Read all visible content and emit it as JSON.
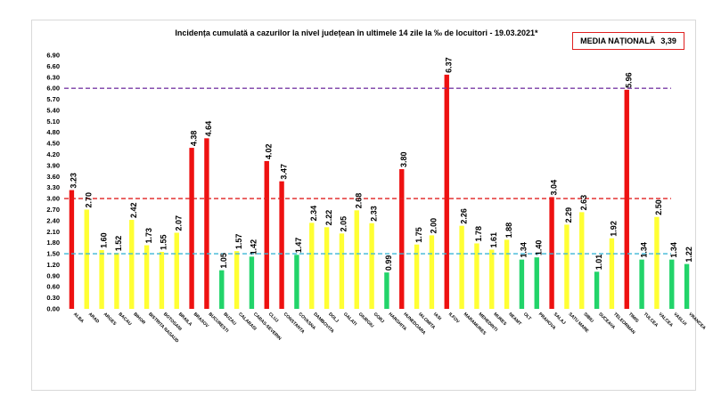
{
  "chart_data": {
    "type": "bar",
    "title": "Incidența cumulată a cazurilor la nivel județean în ultimele 14 zile la ‰ de locuitori - 19.03.2021*",
    "national_box": {
      "label": "MEDIA NAȚIONALĂ",
      "value": "3,39"
    },
    "categories": [
      "ALBA",
      "ARAD",
      "ARGES",
      "BACAU",
      "BIHOR",
      "BISTRITA NASAUD",
      "BOTOSANI",
      "BRAILA",
      "BRASOV",
      "BUCURESTI",
      "BUZAU",
      "CALARASI",
      "CARAS-SEVERIN",
      "CLUJ",
      "CONSTANTA",
      "COVASNA",
      "DAMBOVITA",
      "DOLJ",
      "GALATI",
      "GIURGIU",
      "GORJ",
      "HARGHITA",
      "HUNEDOARA",
      "IALOMITA",
      "IASI",
      "ILFOV",
      "MARAMURES",
      "MEHEDINTI",
      "MURES",
      "NEAMT",
      "OLT",
      "PRAHOVA",
      "SALAJ",
      "SATU MARE",
      "SIBIU",
      "SUCEAVA",
      "TELEORMAN",
      "TIMIS",
      "TULCEA",
      "VALCEA",
      "VASLUI",
      "VRANCEA"
    ],
    "values": [
      3.23,
      2.7,
      1.6,
      1.52,
      2.42,
      1.73,
      1.55,
      2.07,
      4.38,
      4.64,
      1.05,
      1.57,
      1.42,
      4.02,
      3.47,
      1.47,
      2.34,
      2.22,
      2.05,
      2.68,
      2.33,
      0.99,
      3.8,
      1.75,
      2.0,
      6.37,
      2.26,
      1.78,
      1.61,
      1.88,
      1.34,
      1.4,
      3.04,
      2.29,
      2.63,
      1.01,
      1.92,
      5.96,
      1.34,
      2.5,
      1.34,
      1.22
    ],
    "value_labels": [
      "3.23",
      "2.70",
      "1.60",
      "1.52",
      "2.42",
      "1.73",
      "1.55",
      "2.07",
      "4.38",
      "4.64",
      "1.05",
      "1.57",
      "1.42",
      "4.02",
      "3.47",
      "1.47",
      "2.34",
      "2.22",
      "2.05",
      "2.68",
      "2.33",
      "0.99",
      "3.80",
      "1.75",
      "2.00",
      "6.37",
      "2.26",
      "1.78",
      "1.61",
      "1.88",
      "1.34",
      "1.40",
      "3.04",
      "2.29",
      "2.63",
      "1.01",
      "1.92",
      "5.96",
      "1.34",
      "2.50",
      "1.34",
      "1.22"
    ],
    "yticks": [
      "0.00",
      "0.30",
      "0.60",
      "0.90",
      "1.20",
      "1.50",
      "1.80",
      "2.10",
      "2.40",
      "2.70",
      "3.00",
      "3.30",
      "3.60",
      "3.90",
      "4.20",
      "4.50",
      "4.80",
      "5.10",
      "5.40",
      "5.70",
      "6.00",
      "6.30",
      "6.60",
      "6.90"
    ],
    "ylim": [
      0,
      6.9
    ],
    "thresholds": [
      {
        "value": 1.5,
        "color": "#3bb6d6"
      },
      {
        "value": 3.0,
        "color": "#e02020"
      },
      {
        "value": 6.0,
        "color": "#7a3da6"
      }
    ],
    "colors": {
      "green": "#22d46a",
      "yellow": "#ffff33",
      "red": "#ee1111"
    },
    "legend": "none",
    "grid": false,
    "xlabel": "",
    "ylabel": ""
  }
}
